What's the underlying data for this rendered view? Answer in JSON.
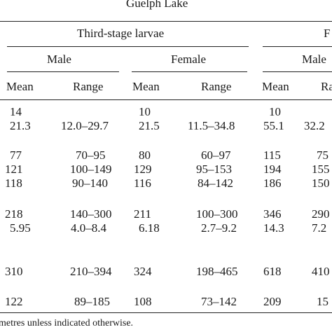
{
  "table": {
    "group_header": "Guelph Lake",
    "stage_headers": [
      "Third-stage larvae",
      "F"
    ],
    "sex_headers": [
      "Male",
      "Female",
      "Male"
    ],
    "column_headers": [
      "Mean",
      "Range",
      "Mean",
      "Range",
      "Mean",
      "Ra"
    ],
    "rows": [
      [
        "14",
        "",
        "10",
        "",
        "10",
        ""
      ],
      [
        "21.3",
        "12.0–29.7",
        "21.5",
        "11.5–34.8",
        "55.1",
        "32.2"
      ],
      [
        "77",
        "70–95",
        "80",
        "60–97",
        "115",
        "75"
      ],
      [
        "121",
        "100–149",
        "129",
        "95–153",
        "194",
        "155"
      ],
      [
        "118",
        "90–140",
        "116",
        "84–142",
        "186",
        "150"
      ],
      [
        "218",
        "140–300",
        "211",
        "100–300",
        "346",
        "290"
      ],
      [
        "5.95",
        "4.0–8.4",
        "6.18",
        "2.7–9.2",
        "14.3",
        "7.2"
      ],
      [
        "310",
        "210–394",
        "324",
        "198–465",
        "618",
        "410"
      ],
      [
        "122",
        "89–185",
        "108",
        "73–142",
        "209",
        "15"
      ]
    ],
    "footnote": "metres unless indicated otherwise."
  }
}
